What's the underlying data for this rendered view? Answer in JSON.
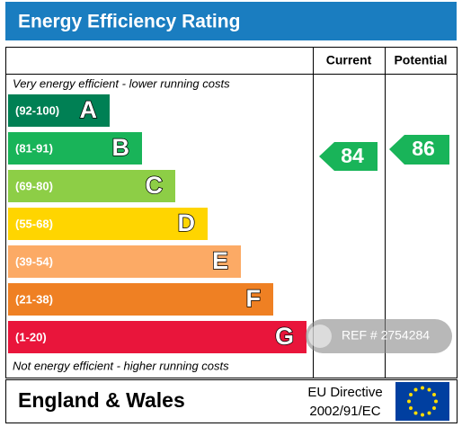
{
  "title": "Energy Efficiency Rating",
  "columns": [
    "Current",
    "Potential"
  ],
  "top_note": "Very energy efficient - lower running costs",
  "bottom_note": "Not energy efficient - higher running costs",
  "bands": [
    {
      "range": "(92-100)",
      "letter": "A",
      "color": "#008054"
    },
    {
      "range": "(81-91)",
      "letter": "B",
      "color": "#19b459"
    },
    {
      "range": "(69-80)",
      "letter": "C",
      "color": "#8dce46"
    },
    {
      "range": "(55-68)",
      "letter": "D",
      "color": "#ffd500"
    },
    {
      "range": "(39-54)",
      "letter": "E",
      "color": "#fcaa65"
    },
    {
      "range": "(21-38)",
      "letter": "F",
      "color": "#ef8023"
    },
    {
      "range": "(1-20)",
      "letter": "G",
      "color": "#e9153b"
    }
  ],
  "current": {
    "value": 84
  },
  "potential": {
    "value": 86
  },
  "footer": {
    "region": "England & Wales",
    "directive": [
      "EU Directive",
      "2002/91/EC"
    ]
  },
  "watermark": "REF # 2754284"
}
